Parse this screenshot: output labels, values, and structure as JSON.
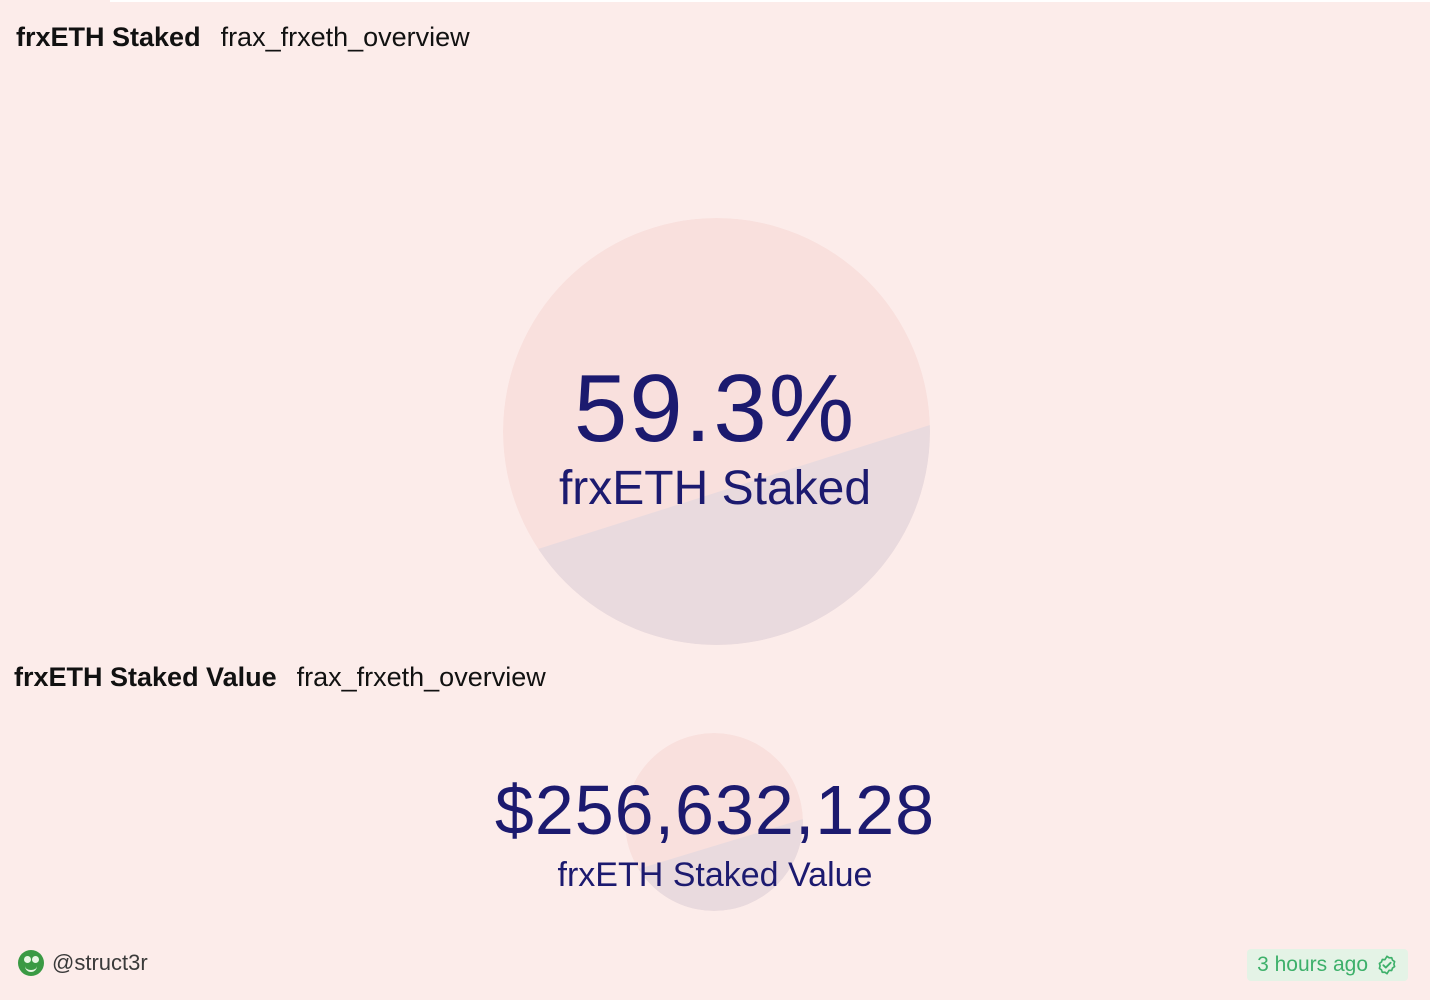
{
  "panels": [
    {
      "title": "frxETH Staked",
      "source": "frax_frxeth_overview",
      "value": "59.3%",
      "label": "frxETH Staked"
    },
    {
      "title": "frxETH Staked Value",
      "source": "frax_frxeth_overview",
      "value": "$256,632,128",
      "label": "frxETH Staked Value"
    }
  ],
  "footer": {
    "user": "@struct3r",
    "avatar_icon": "smiley-avatar-icon",
    "updated": "3 hours ago",
    "verified_icon": "verified-check-icon"
  },
  "colors": {
    "background": "#fcecea",
    "value_text": "#1c1a6f",
    "circle_top": "#f9e0dd",
    "circle_bottom": "#e9dade",
    "badge_text": "#3db06a",
    "badge_bg": "#e4f3e6"
  }
}
